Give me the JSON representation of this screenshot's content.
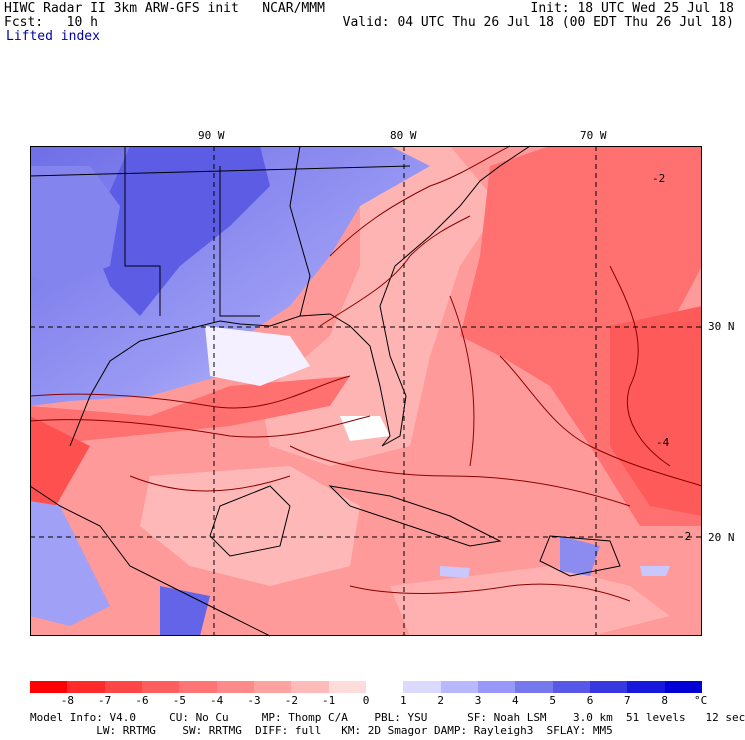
{
  "header": {
    "title_left": "HIWC Radar II 3km ARW-GFS init   NCAR/MMM",
    "forecast": "Fcst:   10 h",
    "field": "Lifted index",
    "init": "Init: 18 UTC Wed 25 Jul 18",
    "valid": "Valid: 04 UTC Thu 26 Jul 18 (00 EDT Thu 26 Jul 18)"
  },
  "map": {
    "lon_labels": [
      "90 W",
      "80 W",
      "70 W"
    ],
    "lat_labels": [
      "30 N",
      "20 N"
    ],
    "contour_labels": [
      "-2",
      "-4",
      "-2"
    ],
    "colors": {
      "negative_strong": "#ff1a1a",
      "negative_mid": "#ff7a7a",
      "negative_weak": "#ffc4c4",
      "neutral": "#ffffff",
      "positive_weak": "#c8c8ff",
      "positive_mid": "#8c8cf0",
      "positive_strong": "#3030e0",
      "contour": "#8b0000",
      "coastline": "#000000"
    }
  },
  "colorbar": {
    "ticks": [
      "-8",
      "-7",
      "-6",
      "-5",
      "-4",
      "-3",
      "-2",
      "-1",
      "0",
      "1",
      "2",
      "3",
      "4",
      "5",
      "6",
      "7",
      "8"
    ],
    "unit": "°C",
    "colors": [
      "#ff0000",
      "#ff2a2a",
      "#ff4646",
      "#ff5e5e",
      "#ff7474",
      "#ff8a8a",
      "#ffa2a2",
      "#ffbaba",
      "#ffdcdc",
      "#ffffff",
      "#dadaff",
      "#b8b8ff",
      "#9898f8",
      "#7878ee",
      "#5858e6",
      "#3838e0",
      "#1818dc",
      "#0000d6"
    ]
  },
  "footer": {
    "line1": "Model Info: V4.0     CU: No Cu     MP: Thomp C/A    PBL: YSU      SF: Noah LSM    3.0 km  51 levels   12 sec",
    "line2": "          LW: RRTMG    SW: RRTMG  DIFF: full   KM: 2D Smagor DAMP: Rayleigh3  SFLAY: MM5"
  }
}
